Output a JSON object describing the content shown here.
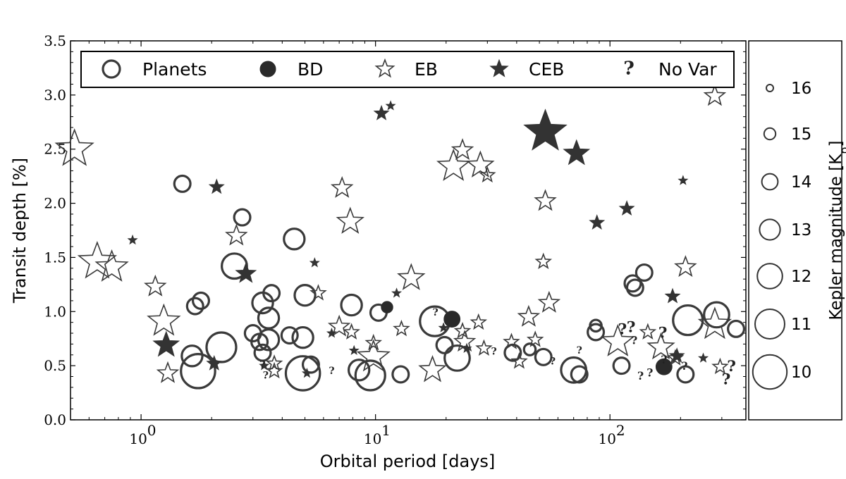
{
  "chart_data": {
    "type": "scatter",
    "title": "",
    "xlabel": "Orbital period [days]",
    "ylabel": "Transit depth [%]",
    "xscale": "log",
    "xlim": [
      0.5,
      380
    ],
    "ylim": [
      0.0,
      3.5
    ],
    "x_ticks": [
      1,
      10,
      100
    ],
    "x_tick_labels": [
      "10^0",
      "10^1",
      "10^2"
    ],
    "y_ticks": [
      0.0,
      0.5,
      1.0,
      1.5,
      2.0,
      2.5,
      3.0,
      3.5
    ],
    "y_tick_labels": [
      "0.0",
      "0.5",
      "1.0",
      "1.5",
      "2.0",
      "2.5",
      "3.0",
      "3.5"
    ],
    "grid": false,
    "legend_position": "top",
    "legend": [
      {
        "key": "planet",
        "label": "Planets"
      },
      {
        "key": "bd",
        "label": "BD"
      },
      {
        "key": "eb",
        "label": "EB"
      },
      {
        "key": "ceb",
        "label": "CEB"
      },
      {
        "key": "novar",
        "label": "No Var"
      }
    ],
    "size_colorbar": {
      "label": "Kepler magnitude [K",
      "label_sub": "p",
      "label_close": "]",
      "ticks": [
        16,
        15,
        14,
        13,
        12,
        11,
        10
      ],
      "tick_labels": [
        "16",
        "15",
        "14",
        "13",
        "12",
        "11",
        "10"
      ]
    },
    "series": [
      {
        "name": "Planets",
        "marker": "open-circle",
        "points": [
          [
            1.5,
            2.18,
            14.0
          ],
          [
            1.7,
            1.05,
            14.0
          ],
          [
            1.8,
            1.1,
            14.0
          ],
          [
            1.65,
            0.59,
            13.0
          ],
          [
            1.75,
            0.45,
            10.0
          ],
          [
            2.2,
            0.67,
            11.0
          ],
          [
            2.5,
            1.42,
            12.0
          ],
          [
            2.7,
            1.87,
            14.0
          ],
          [
            3.0,
            0.8,
            14.0
          ],
          [
            3.2,
            0.72,
            14.0
          ],
          [
            3.3,
            0.62,
            14.0
          ],
          [
            3.3,
            1.08,
            13.0
          ],
          [
            3.5,
            0.94,
            13.0
          ],
          [
            3.5,
            0.74,
            13.0
          ],
          [
            3.6,
            1.17,
            14.0
          ],
          [
            4.3,
            0.78,
            14.0
          ],
          [
            4.5,
            1.67,
            13.0
          ],
          [
            4.9,
            0.76,
            13.0
          ],
          [
            5.0,
            1.15,
            13.0
          ],
          [
            5.3,
            0.51,
            14.0
          ],
          [
            4.9,
            0.43,
            10.0
          ],
          [
            7.9,
            1.06,
            13.0
          ],
          [
            8.5,
            0.46,
            13.0
          ],
          [
            9.5,
            0.41,
            11.0
          ],
          [
            10.3,
            0.99,
            14.0
          ],
          [
            12.8,
            0.42,
            14.0
          ],
          [
            17.9,
            0.91,
            11.0
          ],
          [
            19.7,
            0.69,
            14.0
          ],
          [
            22.3,
            0.57,
            12.0
          ],
          [
            38.5,
            0.62,
            14.0
          ],
          [
            45.5,
            0.65,
            15.0
          ],
          [
            52,
            0.58,
            14.0
          ],
          [
            70,
            0.46,
            12.0
          ],
          [
            74,
            0.42,
            14.0
          ],
          [
            87,
            0.81,
            14.0
          ],
          [
            87,
            0.87,
            15.0
          ],
          [
            112,
            0.5,
            14.0
          ],
          [
            125,
            1.26,
            14.0
          ],
          [
            128,
            1.22,
            14.0
          ],
          [
            140,
            1.36,
            14.0
          ],
          [
            215,
            0.92,
            11.0
          ],
          [
            210,
            0.42,
            14.0
          ],
          [
            285,
            0.97,
            12.0
          ],
          [
            345,
            0.84,
            14.0
          ]
        ]
      },
      {
        "name": "BD",
        "marker": "filled-circle",
        "points": [
          [
            11.2,
            1.04,
            15.0
          ],
          [
            21.2,
            0.93,
            14.0
          ],
          [
            170,
            0.49,
            14.0
          ]
        ]
      },
      {
        "name": "EB",
        "marker": "open-star",
        "points": [
          [
            0.52,
            2.5,
            11.0
          ],
          [
            0.65,
            1.46,
            11.0
          ],
          [
            0.75,
            1.41,
            12.0
          ],
          [
            1.15,
            1.23,
            14.0
          ],
          [
            1.25,
            0.91,
            12.0
          ],
          [
            1.3,
            0.43,
            14.0
          ],
          [
            2.55,
            1.7,
            14.0
          ],
          [
            3.7,
            0.52,
            15.0
          ],
          [
            3.7,
            0.45,
            15.0
          ],
          [
            5.7,
            1.17,
            15.0
          ],
          [
            7.2,
            2.14,
            14.0
          ],
          [
            7.8,
            1.83,
            13.0
          ],
          [
            7.0,
            0.86,
            14.0
          ],
          [
            7.9,
            0.81,
            15.0
          ],
          [
            9.8,
            0.71,
            15.0
          ],
          [
            9.8,
            0.58,
            12.0
          ],
          [
            12.9,
            0.84,
            15.0
          ],
          [
            14.2,
            1.31,
            13.0
          ],
          [
            17.5,
            0.46,
            13.0
          ],
          [
            21.5,
            2.34,
            12.0
          ],
          [
            23.5,
            2.49,
            14.0
          ],
          [
            24,
            0.72,
            14.0
          ],
          [
            23.5,
            0.82,
            15.0
          ],
          [
            27.5,
            0.9,
            15.0
          ],
          [
            28,
            2.35,
            13.0
          ],
          [
            29,
            0.66,
            15.0
          ],
          [
            30,
            2.26,
            15.0
          ],
          [
            38,
            0.72,
            15.0
          ],
          [
            41,
            0.54,
            15.0
          ],
          [
            45,
            0.95,
            14.0
          ],
          [
            48,
            0.74,
            15.0
          ],
          [
            53,
            2.02,
            14.0
          ],
          [
            52,
            1.46,
            15.0
          ],
          [
            55,
            1.08,
            14.0
          ],
          [
            108,
            0.72,
            12.0
          ],
          [
            145,
            0.81,
            15.0
          ],
          [
            165,
            0.67,
            13.0
          ],
          [
            190,
            0.57,
            15.0
          ],
          [
            210,
            1.41,
            14.0
          ],
          [
            280,
            2.99,
            14.0
          ],
          [
            280,
            0.88,
            12.0
          ],
          [
            295,
            0.49,
            15.0
          ]
        ]
      },
      {
        "name": "CEB",
        "marker": "filled-star",
        "points": [
          [
            0.92,
            1.66,
            16.0
          ],
          [
            1.28,
            0.69,
            13.0
          ],
          [
            2.05,
            0.52,
            15.0
          ],
          [
            2.1,
            2.15,
            15.0
          ],
          [
            2.8,
            1.35,
            14.0
          ],
          [
            3.35,
            0.5,
            16.0
          ],
          [
            5.1,
            0.43,
            16.0
          ],
          [
            5.5,
            1.45,
            16.0
          ],
          [
            6.5,
            0.8,
            16.0
          ],
          [
            8.1,
            0.64,
            16.0
          ],
          [
            10.6,
            2.83,
            15.0
          ],
          [
            11.6,
            2.9,
            16.0
          ],
          [
            12.3,
            1.17,
            16.0
          ],
          [
            19.5,
            0.85,
            16.0
          ],
          [
            24.5,
            0.66,
            16.0
          ],
          [
            53,
            2.66,
            10.0
          ],
          [
            72,
            2.46,
            13.0
          ],
          [
            88,
            1.82,
            15.0
          ],
          [
            118,
            1.95,
            15.0
          ],
          [
            185,
            1.14,
            15.0
          ],
          [
            193,
            0.59,
            15.0
          ],
          [
            205,
            2.21,
            16.0
          ],
          [
            250,
            0.57,
            16.0
          ]
        ]
      },
      {
        "name": "No Var",
        "marker": "question",
        "points": [
          [
            3.3,
            0.5,
            16.0
          ],
          [
            3.4,
            0.4,
            16.0
          ],
          [
            6.5,
            0.44,
            16.0
          ],
          [
            18.0,
            0.98,
            16.0
          ],
          [
            32,
            0.62,
            16.0
          ],
          [
            57,
            0.53,
            16.0
          ],
          [
            74,
            0.63,
            16.0
          ],
          [
            113,
            0.83,
            14.0
          ],
          [
            123,
            0.85,
            14.0
          ],
          [
            127,
            0.73,
            15.0
          ],
          [
            135,
            0.4,
            15.0
          ],
          [
            148,
            0.43,
            15.0
          ],
          [
            168,
            0.8,
            14.0
          ],
          [
            170,
            0.55,
            15.0
          ],
          [
            208,
            0.49,
            15.0
          ],
          [
            313,
            0.37,
            14.0
          ],
          [
            330,
            0.49,
            14.0
          ]
        ]
      }
    ]
  }
}
